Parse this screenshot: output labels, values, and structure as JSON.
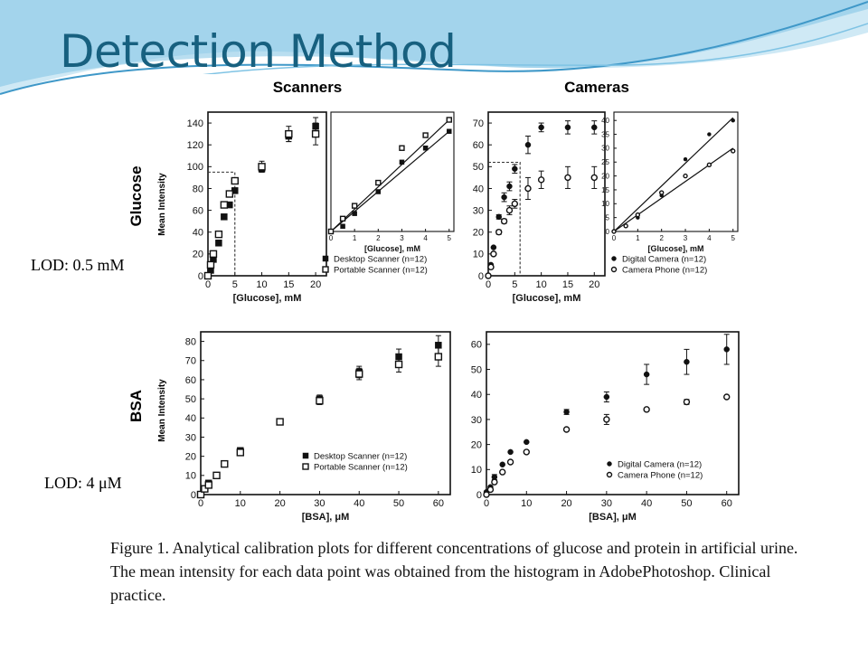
{
  "slide": {
    "title": "Detection Method",
    "lod_glucose": "LOD: 0.5 mM",
    "lod_bsa": "LOD: 4 μM",
    "caption": "Figure 1. Analytical calibration plots for different concentrations of glucose and protein in artificial urine. The mean intensity for each data point was obtained from the histogram in AdobePhotoshop. Clinical  practice.",
    "colors": {
      "title": "#17607f",
      "wave_light": "#cfe9f5",
      "wave_mid": "#7fc3e4",
      "wave_dark": "#3f98c8"
    }
  },
  "figure": {
    "column_headers": [
      "Scanners",
      "Cameras"
    ],
    "row_labels": [
      "Glucose",
      "BSA"
    ],
    "ylabel": "Mean Intensity"
  },
  "chart_data": [
    {
      "id": "glucose-scanners",
      "type": "scatter",
      "xlabel": "[Glucose], mM",
      "ylabel": "Mean Intensity",
      "xlim": [
        0,
        22
      ],
      "ylim": [
        0,
        150
      ],
      "xticks": [
        0,
        5,
        10,
        15,
        20
      ],
      "yticks": [
        0,
        20,
        40,
        60,
        80,
        100,
        120,
        140
      ],
      "lod_box": {
        "x": 5,
        "y": 95
      },
      "series": [
        {
          "name": "Desktop Scanner (n=12)",
          "marker": "filled-square",
          "x": [
            0,
            0.5,
            1,
            2,
            3,
            4,
            5,
            10,
            15,
            20
          ],
          "y": [
            0,
            5,
            15,
            30,
            54,
            65,
            78,
            98,
            128,
            137
          ],
          "err": [
            0,
            0,
            0,
            0,
            0,
            0,
            0,
            3,
            5,
            8
          ]
        },
        {
          "name": "Portable Scanner (n=12)",
          "marker": "open-square",
          "x": [
            0,
            0.5,
            1,
            2,
            3,
            4,
            5,
            10,
            15,
            20
          ],
          "y": [
            0,
            10,
            20,
            38,
            65,
            75,
            87,
            100,
            130,
            130
          ],
          "err": [
            0,
            0,
            0,
            0,
            0,
            0,
            0,
            5,
            7,
            10
          ]
        }
      ],
      "inset": {
        "xlabel": "[Glucose], mM",
        "xlim": [
          0,
          5.2
        ],
        "xticks": [
          0,
          1,
          2,
          3,
          4,
          5
        ],
        "series": [
          {
            "x": [
              0,
              0.5,
              1,
              2,
              3,
              4,
              5
            ],
            "y": [
              0,
              4,
              14,
              31,
              54,
              65,
              78
            ]
          },
          {
            "x": [
              0,
              0.5,
              1,
              2,
              3,
              4,
              5
            ],
            "y": [
              0,
              10,
              20,
              38,
              65,
              75,
              87
            ]
          }
        ],
        "fits": [
          {
            "x": [
              0,
              5
            ],
            "y": [
              0,
              78
            ]
          },
          {
            "x": [
              0,
              5
            ],
            "y": [
              0,
              87
            ]
          }
        ]
      }
    },
    {
      "id": "glucose-cameras",
      "type": "scatter",
      "xlabel": "[Glucose], mM",
      "xlim": [
        0,
        22
      ],
      "ylim": [
        0,
        75
      ],
      "xticks": [
        0,
        5,
        10,
        15,
        20
      ],
      "yticks": [
        0,
        10,
        20,
        30,
        40,
        50,
        60,
        70
      ],
      "lod_box": {
        "x": 6,
        "y": 52
      },
      "series": [
        {
          "name": "Digital Camera (n=12)",
          "marker": "filled-circle",
          "x": [
            0,
            0.5,
            1,
            2,
            3,
            4,
            5,
            7.5,
            10,
            15,
            20
          ],
          "y": [
            0,
            5,
            13,
            27,
            36,
            41,
            49,
            60,
            68,
            68,
            68
          ],
          "err": [
            0,
            0,
            0,
            1,
            2,
            2,
            2,
            4,
            2,
            3,
            3
          ]
        },
        {
          "name": "Camera Phone (n=12)",
          "marker": "open-circle",
          "x": [
            0,
            0.5,
            1,
            2,
            3,
            4,
            5,
            7.5,
            10,
            15,
            20
          ],
          "y": [
            0,
            4,
            10,
            20,
            25,
            30,
            33,
            40,
            44,
            45,
            45
          ],
          "err": [
            0,
            0,
            0,
            1,
            1,
            2,
            2,
            5,
            4,
            5,
            5
          ]
        }
      ],
      "inset": {
        "xlabel": "[Glucose], mM",
        "xlim": [
          0,
          5.2
        ],
        "ylim": [
          0,
          43
        ],
        "xticks": [
          0,
          1,
          2,
          3,
          4,
          5
        ],
        "yticks": [
          0,
          5,
          10,
          15,
          20,
          25,
          30,
          35,
          40
        ],
        "series": [
          {
            "x": [
              0,
              0.5,
              1,
              2,
              3,
              4,
              5
            ],
            "y": [
              0,
              2,
              5,
              13,
              26,
              35,
              40
            ]
          },
          {
            "x": [
              0,
              0.5,
              1,
              2,
              3,
              4,
              5
            ],
            "y": [
              0,
              2,
              6,
              14,
              20,
              24,
              29
            ]
          }
        ],
        "fits": [
          {
            "x": [
              0,
              5
            ],
            "y": [
              0,
              41
            ]
          },
          {
            "x": [
              0,
              5
            ],
            "y": [
              0,
              30
            ]
          }
        ]
      }
    },
    {
      "id": "bsa-scanners",
      "type": "scatter",
      "xlabel": "[BSA], μM",
      "ylabel": "Mean Intensity",
      "xlim": [
        0,
        63
      ],
      "ylim": [
        0,
        85
      ],
      "xticks": [
        0,
        10,
        20,
        30,
        40,
        50,
        60
      ],
      "yticks": [
        0,
        10,
        20,
        30,
        40,
        50,
        60,
        70,
        80
      ],
      "series": [
        {
          "name": "Desktop Scanner (n=12)",
          "marker": "filled-square",
          "x": [
            0,
            1,
            2,
            4,
            6,
            10,
            20,
            30,
            40,
            50,
            60
          ],
          "y": [
            0,
            3,
            6,
            10,
            16,
            23,
            38,
            50,
            64,
            72,
            78
          ],
          "err": [
            0,
            0,
            0,
            0,
            0,
            1,
            1,
            2,
            3,
            4,
            5
          ]
        },
        {
          "name": "Portable Scanner (n=12)",
          "marker": "open-square",
          "x": [
            0,
            1,
            2,
            4,
            6,
            10,
            20,
            30,
            40,
            50,
            60
          ],
          "y": [
            0,
            3,
            5,
            10,
            16,
            22,
            38,
            49,
            63,
            68,
            72
          ],
          "err": [
            0,
            0,
            0,
            0,
            0,
            1,
            1,
            2,
            3,
            4,
            5
          ]
        }
      ]
    },
    {
      "id": "bsa-cameras",
      "type": "scatter",
      "xlabel": "[BSA], μM",
      "xlim": [
        0,
        63
      ],
      "ylim": [
        0,
        65
      ],
      "xticks": [
        0,
        10,
        20,
        30,
        40,
        50,
        60
      ],
      "yticks": [
        0,
        10,
        20,
        30,
        40,
        50,
        60
      ],
      "series": [
        {
          "name": "Digital Camera (n=12)",
          "marker": "filled-circle",
          "x": [
            0,
            1,
            2,
            4,
            6,
            10,
            20,
            30,
            40,
            50,
            60
          ],
          "y": [
            1,
            3,
            7,
            12,
            17,
            21,
            33,
            39,
            48,
            53,
            58
          ],
          "err": [
            0,
            0,
            1,
            0,
            0,
            0,
            1,
            2,
            4,
            5,
            6
          ]
        },
        {
          "name": "Camera Phone (n=12)",
          "marker": "open-circle",
          "x": [
            0,
            1,
            2,
            4,
            6,
            10,
            20,
            30,
            40,
            50,
            60
          ],
          "y": [
            0,
            2,
            5,
            9,
            13,
            17,
            26,
            30,
            34,
            37,
            39
          ],
          "err": [
            0,
            0,
            0,
            0,
            0,
            0,
            0,
            2,
            0,
            1,
            0
          ]
        }
      ]
    }
  ]
}
